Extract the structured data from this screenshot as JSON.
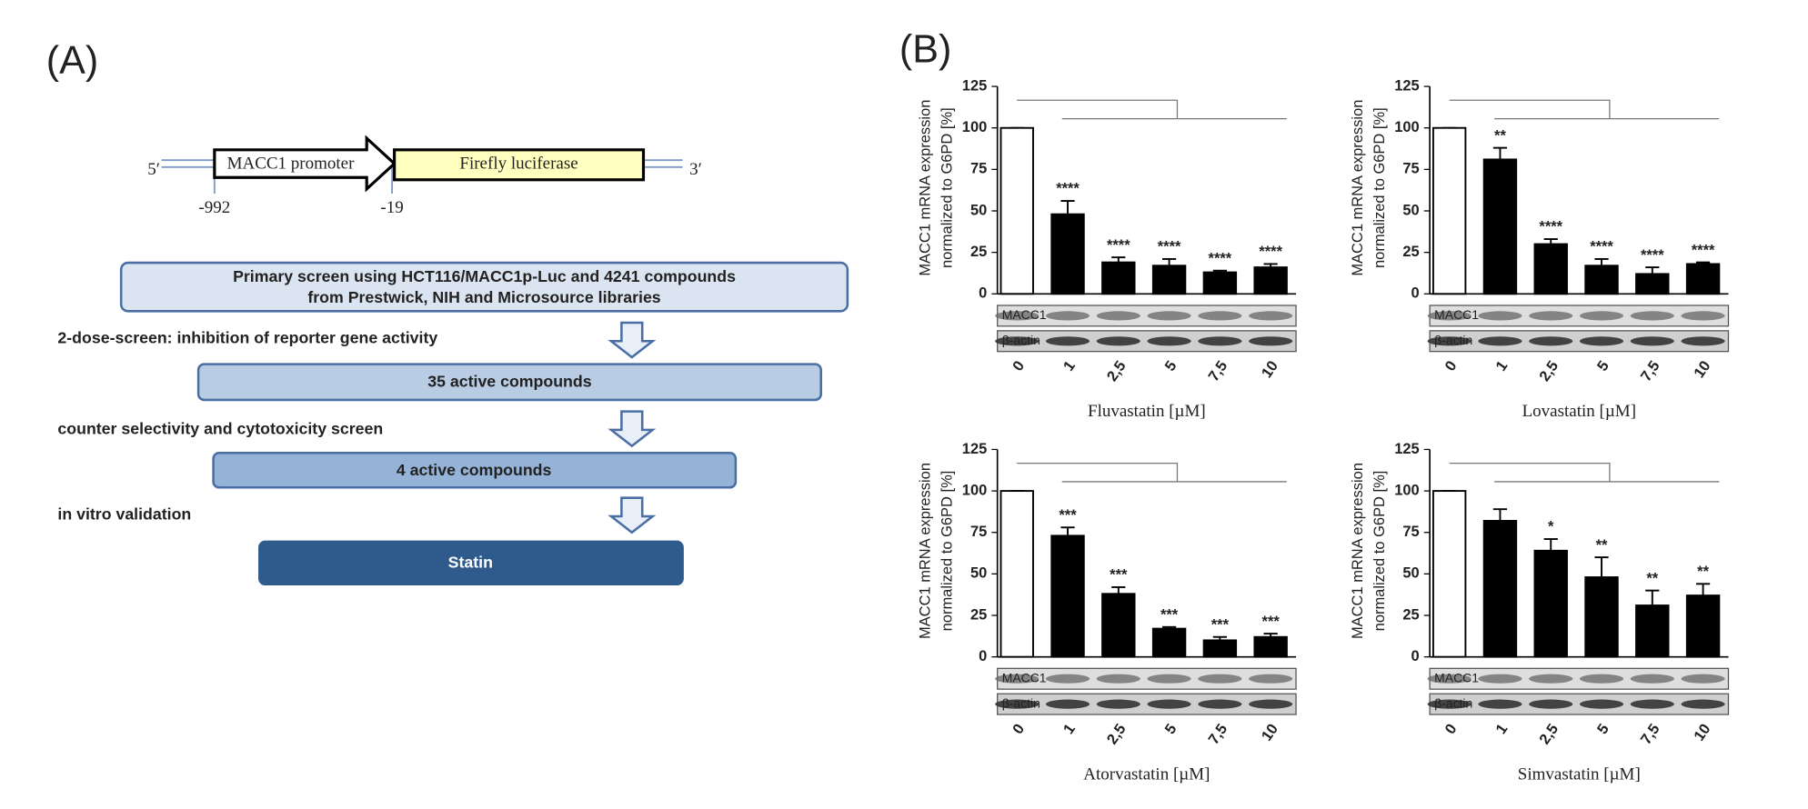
{
  "panel_a": {
    "label": "(A)",
    "construct": {
      "five_prime": "5′",
      "promoter": "MACC1 promoter",
      "reporter": "Firefly luciferase",
      "three_prime": "3′",
      "start": "-992",
      "end": "-19"
    },
    "boxes": [
      [
        "Primary screen using HCT116/MACC1p-Luc and 4241 compounds",
        "from Prestwick, NIH and Microsource libraries"
      ],
      [
        "35 active compounds"
      ],
      [
        "4 active compounds"
      ],
      [
        "Statin"
      ]
    ],
    "transitions": [
      "2-dose-screen: inhibition of reporter gene activity",
      "counter selectivity and cytotoxicity screen",
      "in vitro validation"
    ]
  },
  "panel_b": {
    "label": "(B)"
  },
  "chart_data": [
    {
      "type": "bar",
      "xlabel": "Fluvastatin [µM]",
      "ylabel": [
        "MACC1 mRNA expression",
        "normalized to G6PD [%]"
      ],
      "categories": [
        "0",
        "1",
        "2,5",
        "5",
        "7,5",
        "10"
      ],
      "values": [
        100,
        48,
        19,
        17,
        13,
        16
      ],
      "errors": [
        0,
        8,
        3,
        4,
        1,
        2
      ],
      "bar_colors": [
        "#ffffff",
        "#000000",
        "#000000",
        "#000000",
        "#000000",
        "#000000"
      ],
      "annotations": [
        null,
        "****",
        "****",
        "****",
        "****",
        "****"
      ],
      "blot_labels": [
        "MACC1",
        "β-actin"
      ],
      "ylim": [
        0,
        125
      ],
      "yticks": [
        0,
        25,
        50,
        75,
        100,
        125
      ]
    },
    {
      "type": "bar",
      "xlabel": "Lovastatin [µM]",
      "ylabel": [
        "MACC1 mRNA expression",
        "normalized to G6PD [%]"
      ],
      "categories": [
        "0",
        "1",
        "2,5",
        "5",
        "7,5",
        "10"
      ],
      "values": [
        100,
        81,
        30,
        17,
        12,
        18
      ],
      "errors": [
        0,
        7,
        3,
        4,
        4,
        1
      ],
      "bar_colors": [
        "#ffffff",
        "#000000",
        "#000000",
        "#000000",
        "#000000",
        "#000000"
      ],
      "annotations": [
        null,
        "**",
        "****",
        "****",
        "****",
        "****"
      ],
      "blot_labels": [
        "MACC1",
        "β-actin"
      ],
      "ylim": [
        0,
        125
      ],
      "yticks": [
        0,
        25,
        50,
        75,
        100,
        125
      ]
    },
    {
      "type": "bar",
      "xlabel": "Atorvastatin [µM]",
      "ylabel": [
        "MACC1 mRNA expression",
        "normalized to G6PD [%]"
      ],
      "categories": [
        "0",
        "1",
        "2,5",
        "5",
        "7,5",
        "10"
      ],
      "values": [
        100,
        73,
        38,
        17,
        10,
        12
      ],
      "errors": [
        0,
        5,
        4,
        1,
        2,
        2
      ],
      "bar_colors": [
        "#ffffff",
        "#000000",
        "#000000",
        "#000000",
        "#000000",
        "#000000"
      ],
      "annotations": [
        null,
        "***",
        "***",
        "***",
        "***",
        "***"
      ],
      "blot_labels": [
        "MACC1",
        "β-actin"
      ],
      "ylim": [
        0,
        125
      ],
      "yticks": [
        0,
        25,
        50,
        75,
        100,
        125
      ]
    },
    {
      "type": "bar",
      "xlabel": "Simvastatin [µM]",
      "ylabel": [
        "MACC1 mRNA expression",
        "normalized to G6PD [%]"
      ],
      "categories": [
        "0",
        "1",
        "2,5",
        "5",
        "7,5",
        "10"
      ],
      "values": [
        100,
        82,
        64,
        48,
        31,
        37
      ],
      "errors": [
        0,
        7,
        7,
        12,
        9,
        7
      ],
      "bar_colors": [
        "#ffffff",
        "#000000",
        "#000000",
        "#000000",
        "#000000",
        "#000000"
      ],
      "annotations": [
        null,
        null,
        "*",
        "**",
        "**",
        "**"
      ],
      "blot_labels": [
        "MACC1",
        "β-actin"
      ],
      "ylim": [
        0,
        125
      ],
      "yticks": [
        0,
        25,
        50,
        75,
        100,
        125
      ]
    }
  ]
}
